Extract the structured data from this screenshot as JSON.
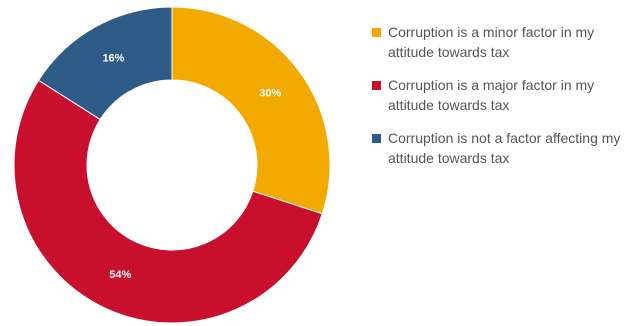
{
  "chart_data": {
    "type": "donut",
    "categories": [
      "Corruption is a minor factor in my attitude towards tax",
      "Corruption is a major factor in my attitude towards tax",
      "Corruption is not a factor affecting my attitude towards tax"
    ],
    "values": [
      30,
      54,
      16
    ],
    "value_labels": [
      "30%",
      "54%",
      "16%"
    ],
    "colors": [
      "#F2A900",
      "#C8102E",
      "#2E5C87"
    ],
    "start_angle_deg": 0,
    "direction": "clockwise",
    "legend_position": "right",
    "title": ""
  },
  "legend": {
    "items": [
      {
        "label": "Corruption is a minor factor in my attitude towards tax",
        "color": "#F2A900"
      },
      {
        "label": "Corruption is a major factor in my attitude towards tax",
        "color": "#C8102E"
      },
      {
        "label": "Corruption is not a factor affecting my attitude towards tax",
        "color": "#2E5C87"
      }
    ]
  }
}
